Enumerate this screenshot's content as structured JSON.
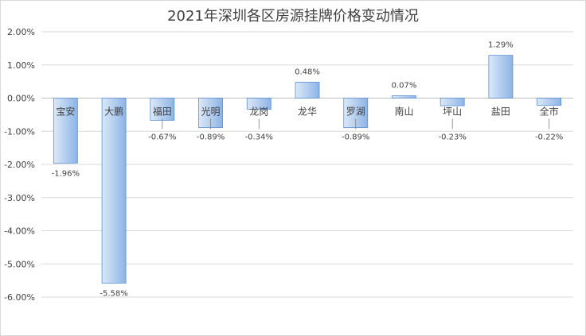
{
  "chart_data": {
    "type": "bar",
    "title": "2021年深圳各区房源挂牌价格变动情况",
    "xlabel": "",
    "ylabel": "",
    "categories": [
      "宝安",
      "大鹏",
      "福田",
      "光明",
      "龙岗",
      "龙华",
      "罗湖",
      "南山",
      "坪山",
      "盐田",
      "全市"
    ],
    "values": [
      -1.96,
      -5.58,
      -0.67,
      -0.89,
      -0.34,
      0.48,
      -0.89,
      0.07,
      -0.23,
      1.29,
      -0.22
    ],
    "value_labels": [
      "-1.96%",
      "-5.58%",
      "-0.67%",
      "-0.89%",
      "-0.34%",
      "0.48%",
      "-0.89%",
      "0.07%",
      "-0.23%",
      "1.29%",
      "-0.22%"
    ],
    "ylim": [
      -6,
      2
    ],
    "y_ticks": [
      2,
      1,
      0,
      -1,
      -2,
      -3,
      -4,
      -5,
      -6
    ],
    "y_tick_labels": [
      "2.00%",
      "1.00%",
      "0.00%",
      "-1.00%",
      "-2.00%",
      "-3.00%",
      "-4.00%",
      "-5.00%",
      "-6.00%"
    ],
    "grid": true,
    "legend": "none",
    "bar_color_light": "#dce9f8",
    "bar_color_dark": "#8cb4e6"
  }
}
